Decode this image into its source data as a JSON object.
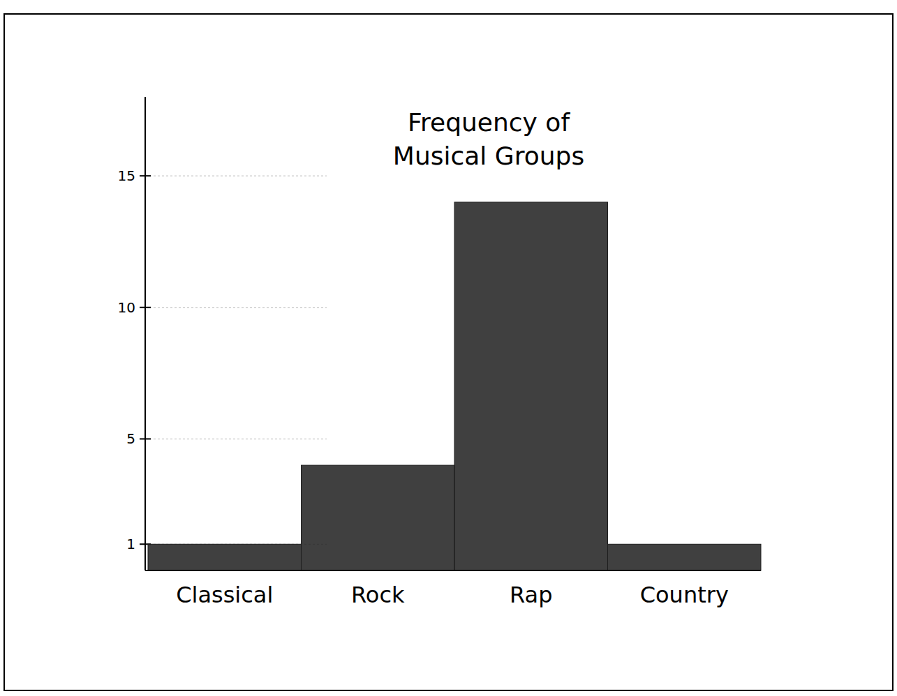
{
  "chart_data": {
    "type": "bar",
    "title": "Frequency of Musical Groups",
    "categories": [
      "Classical",
      "Rock",
      "Rap",
      "Country"
    ],
    "values": [
      1,
      4,
      14,
      1
    ],
    "color": "#1e1e1e",
    "ylim": [
      0,
      18
    ],
    "yticks": [
      1,
      5,
      10,
      15
    ],
    "grid": true
  }
}
